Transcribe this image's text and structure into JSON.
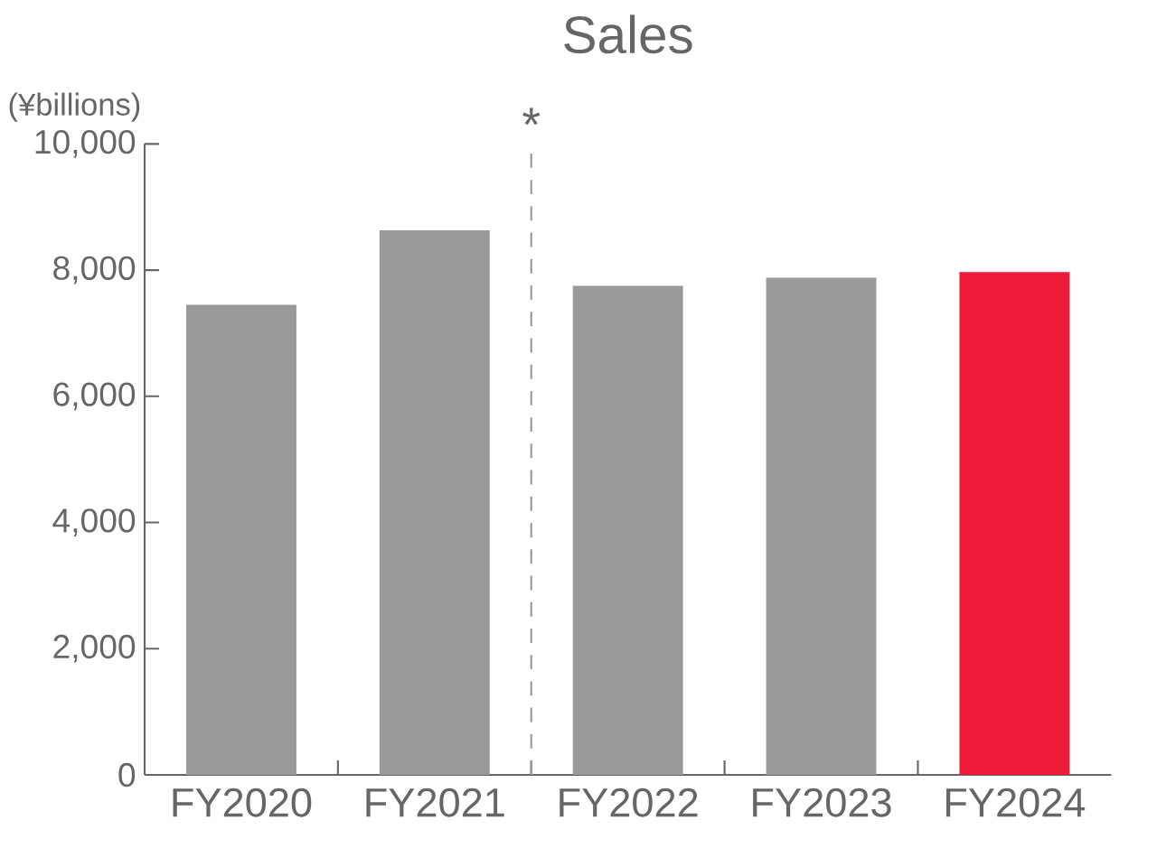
{
  "chart_data": {
    "type": "bar",
    "title": "Sales",
    "ylabel": "(¥billions)",
    "categories": [
      "FY2020",
      "FY2021",
      "FY2022",
      "FY2023",
      "FY2024"
    ],
    "values": [
      7450,
      8630,
      7750,
      7880,
      7970
    ],
    "colors": [
      "#999999",
      "#999999",
      "#999999",
      "#999999",
      "#ee1a3a"
    ],
    "ylim": [
      0,
      10000
    ],
    "yticks": [
      0,
      {
        "value": 2000,
        "label": "2,000"
      },
      {
        "value": 4000,
        "label": "4,000"
      },
      {
        "value": 6000,
        "label": "6,000"
      },
      {
        "value": 8000,
        "label": "8,000"
      },
      {
        "value": 10000,
        "label": "10,000"
      }
    ],
    "annotations": [
      "*"
    ]
  }
}
